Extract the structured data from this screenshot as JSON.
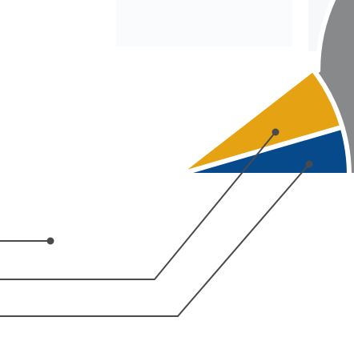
{
  "chart_data": {
    "type": "pie",
    "title": "",
    "slices": [
      {
        "value": 89.5,
        "color": "#88898b",
        "exploded": false
      },
      {
        "value": 6.0,
        "color": "#e5a313",
        "exploded": true
      },
      {
        "value": 4.5,
        "color": "#074a8c",
        "exploded": true
      }
    ],
    "start_angle_deg": 0,
    "direction": "counterclockwise-for-exploded",
    "legend": "none",
    "leader_line_color": "#4a4a4a",
    "separator_color": "#ffffff"
  }
}
